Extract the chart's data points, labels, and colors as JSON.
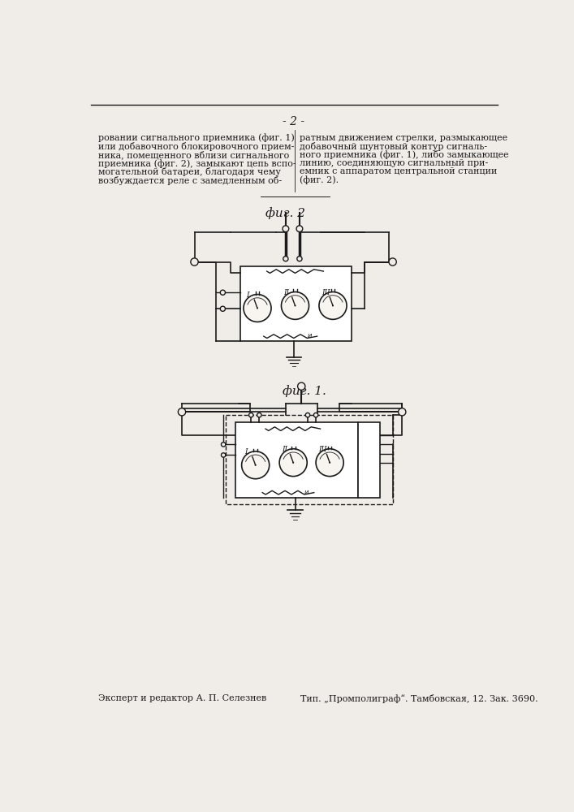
{
  "page_bg": "#f0ede8",
  "page_number": "- 2 -",
  "left_text": "ровании сигнального приемника (фиг. 1)\nили добавочного блокировочного прием-\nника, помещенного вблизи сигнального\nприемника (фиг. 2), замыкают цепь вспо-\nмогательной батареи, благодаря чему\nвозбуждается реле с замедленным об-",
  "right_text": "ратным движением стрелки, размыкающее\nдобавочный шунтовый контур сигналь-\nного приемника (фиг. 1), либо замыкающее\nлинию, соединяющую сигнальный при-\nемник с аппаратом центральной станции\n(фиг. 2).",
  "fig2_label": "фиг. 2",
  "fig1_label": "фиг. 1.",
  "bottom_left": "Эксперт и редактор А. П. Селезнев",
  "bottom_right": "Тип. „Промполиграф“. Тамбовская, 12. Зак. 3690.",
  "line_color": "#1a1a1a",
  "text_color": "#1a1a1a"
}
